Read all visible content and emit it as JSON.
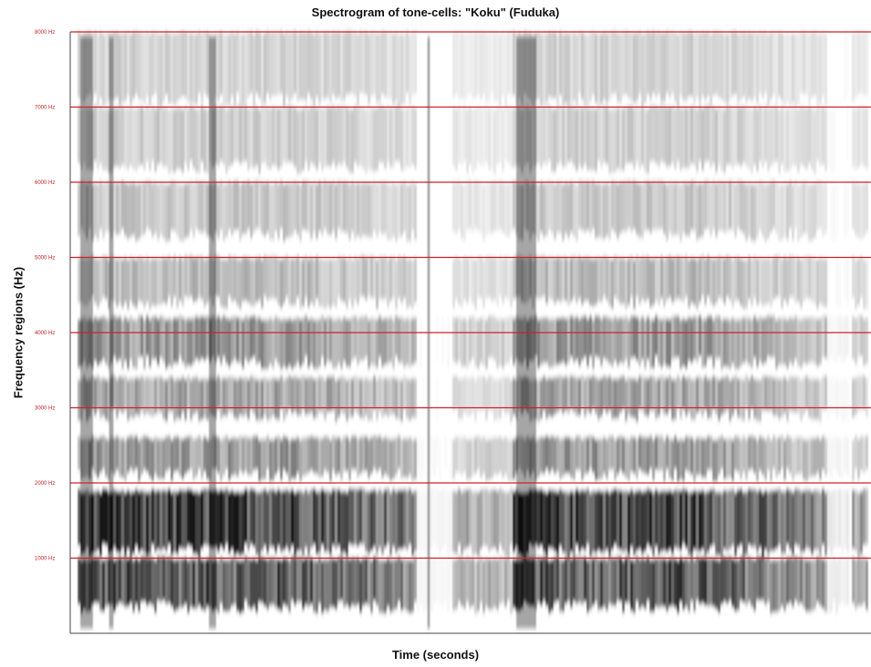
{
  "chart_data": {
    "type": "heatmap",
    "title": "Spectrogram of tone-cells: \"Koku\" (Fuduka)",
    "xlabel": "Time (seconds)",
    "ylabel": "Frequency regions (Hz)",
    "ylim": [
      0,
      8000
    ],
    "y_ticks": [
      {
        "value": 1000,
        "label": "1000 Hz"
      },
      {
        "value": 2000,
        "label": "2000 Hz"
      },
      {
        "value": 3000,
        "label": "3000 Hz"
      },
      {
        "value": 4000,
        "label": "4000 Hz"
      },
      {
        "value": 5000,
        "label": "5000 Hz"
      },
      {
        "value": 6000,
        "label": "6000 Hz"
      },
      {
        "value": 7000,
        "label": "7000 Hz"
      },
      {
        "value": 8000,
        "label": "8000 Hz"
      }
    ],
    "gridlines": "horizontal",
    "colors": {
      "intensity": "#000000",
      "gridline": "#d0202a",
      "tick_label": "#c0202a",
      "background": "#ffffff"
    },
    "bands": [
      {
        "from": 350,
        "to": 1000,
        "level": 0.75
      },
      {
        "from": 1100,
        "to": 1900,
        "level": 0.85
      },
      {
        "from": 2100,
        "to": 2600,
        "level": 0.45
      },
      {
        "from": 2900,
        "to": 3400,
        "level": 0.4
      },
      {
        "from": 3600,
        "to": 4200,
        "level": 0.45
      },
      {
        "from": 4400,
        "to": 5000,
        "level": 0.3
      },
      {
        "from": 5300,
        "to": 6000,
        "level": 0.25
      },
      {
        "from": 6200,
        "to": 7000,
        "level": 0.22
      },
      {
        "from": 7100,
        "to": 8000,
        "level": 0.2
      }
    ]
  }
}
